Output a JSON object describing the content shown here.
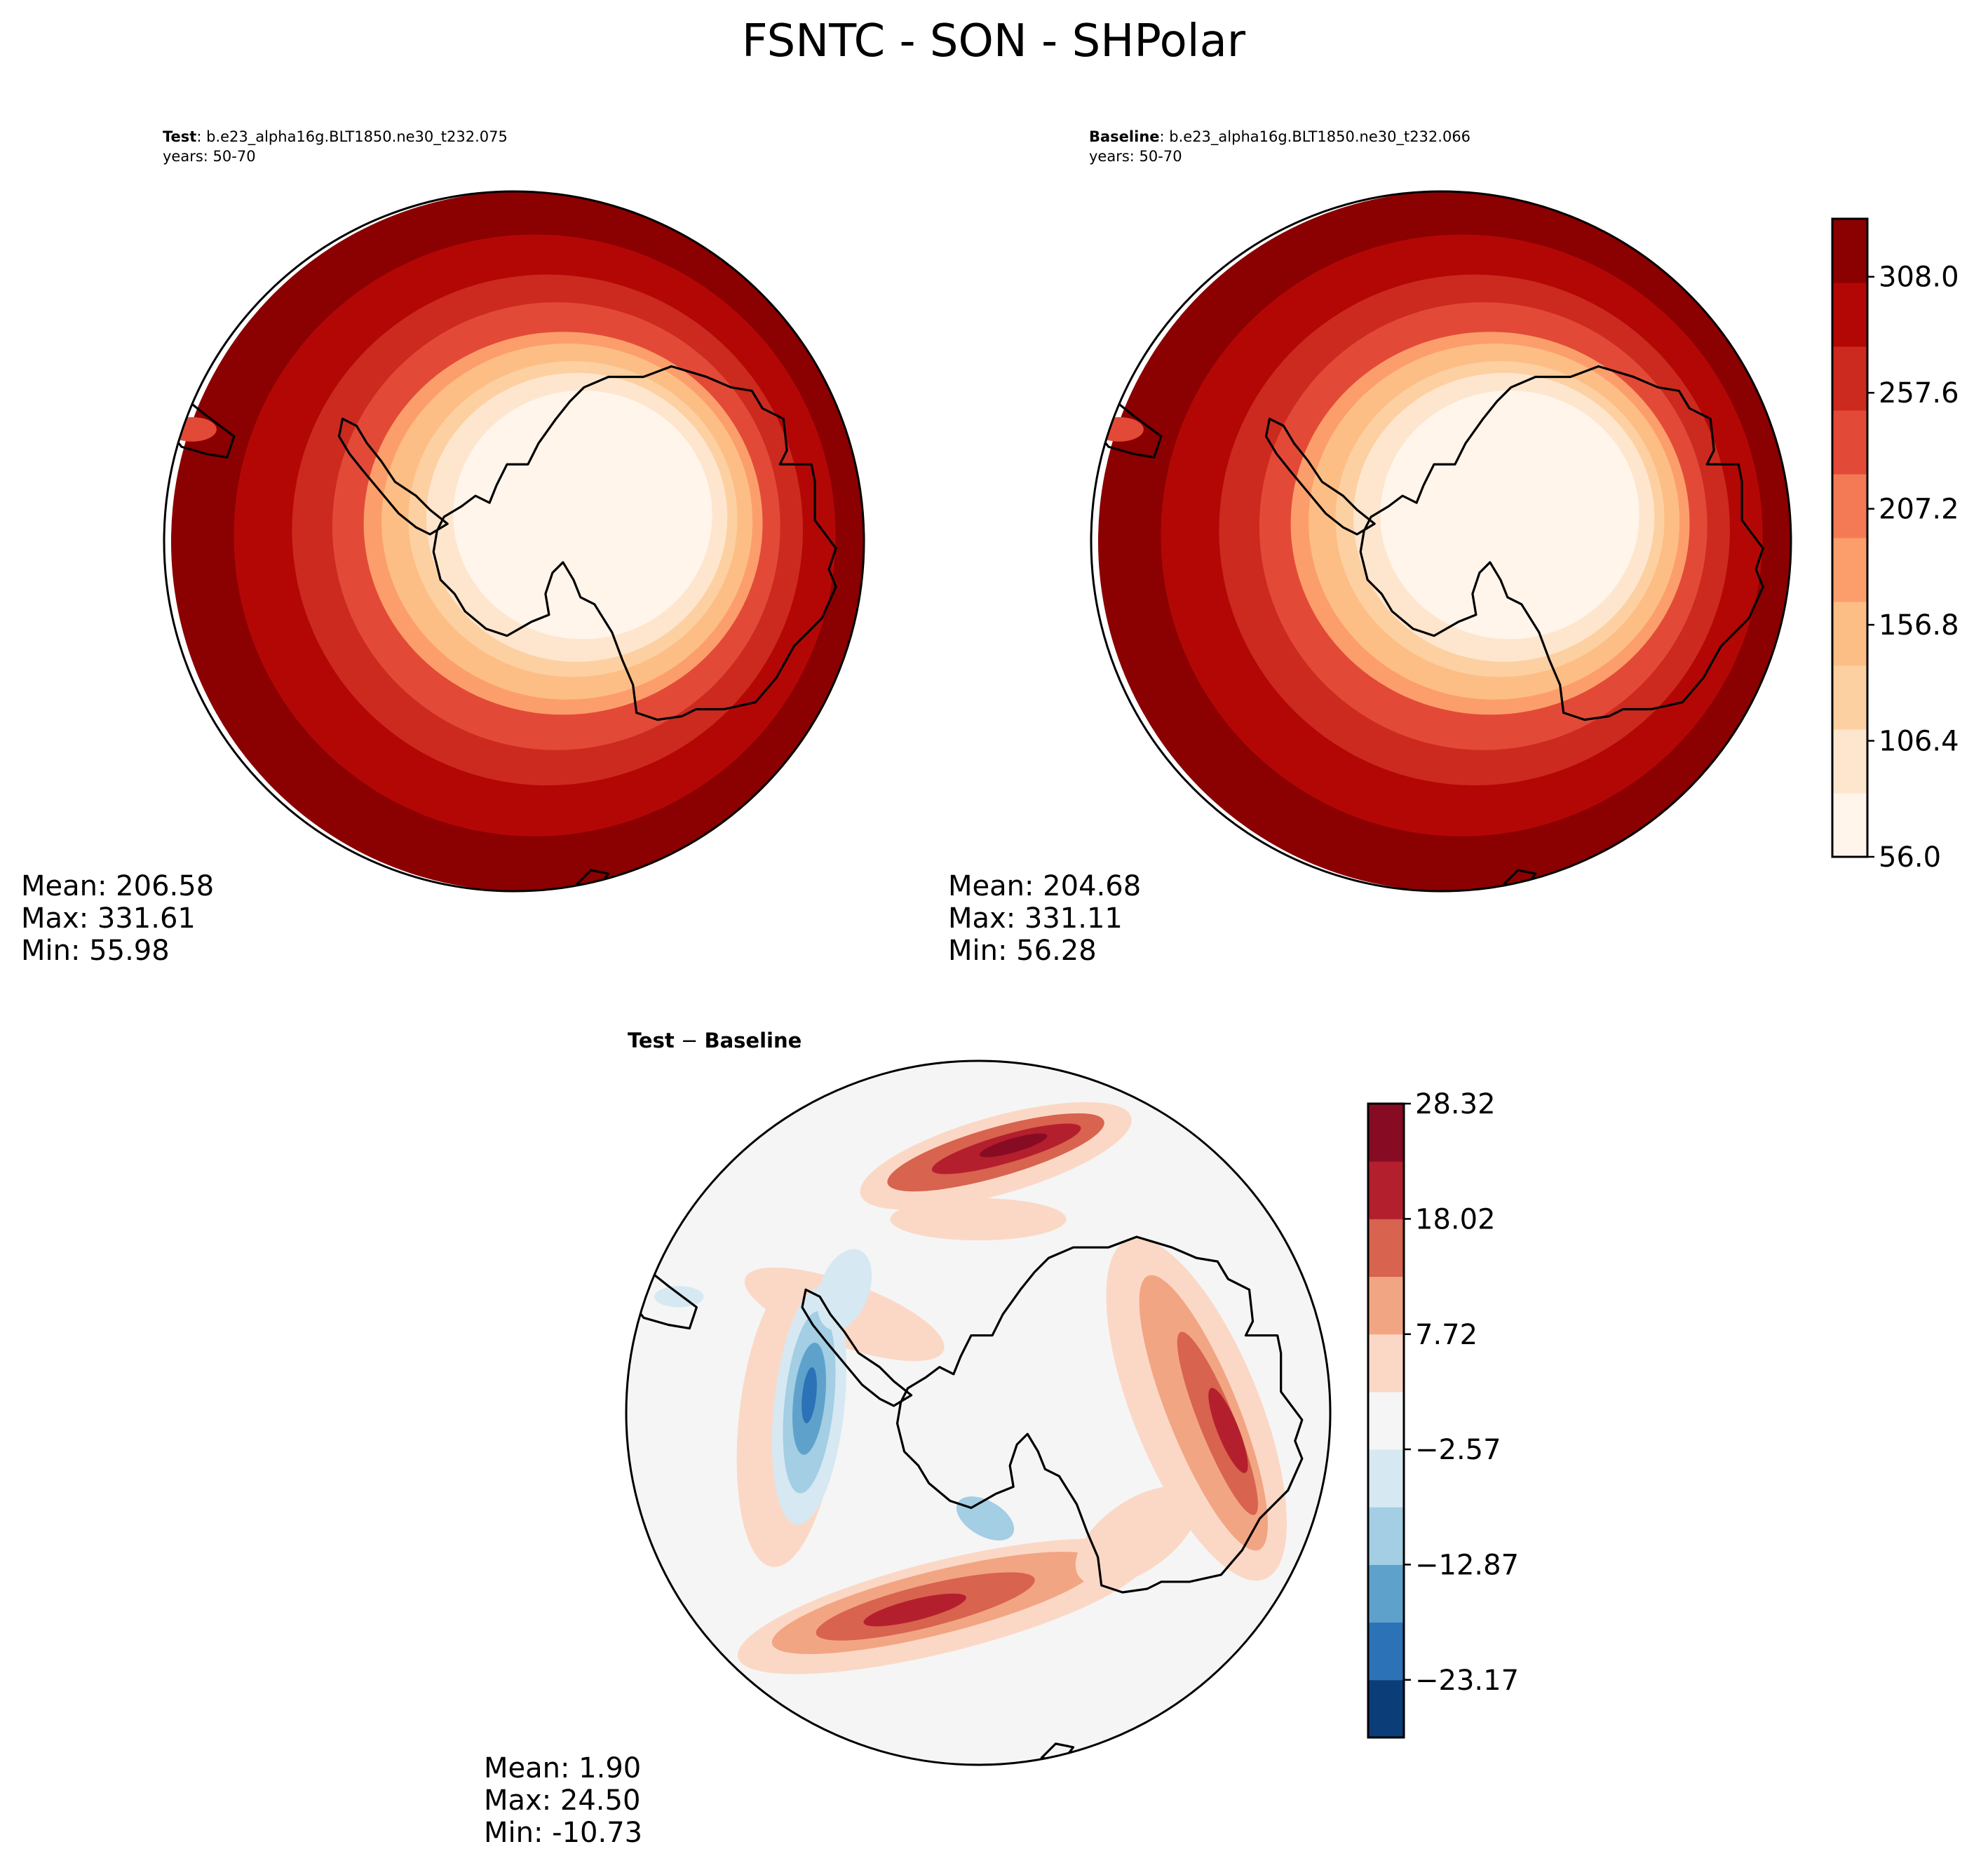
{
  "figure": {
    "title": "FSNTC - SON - SHPolar"
  },
  "panels": [
    {
      "id": "test",
      "label": "Test",
      "label_sep": ": ",
      "case": "b.e23_alpha16g.BLT1850.ne30_t232.075",
      "years": "years: 50-70",
      "stats": {
        "mean": "Mean: 206.58",
        "max": "Max: 331.61",
        "min": "Min: 55.98"
      }
    },
    {
      "id": "baseline",
      "label": "Baseline",
      "label_sep": ": ",
      "case": "b.e23_alpha16g.BLT1850.ne30_t232.066",
      "years": "years: 50-70",
      "stats": {
        "mean": "Mean: 204.68",
        "max": "Max: 331.11",
        "min": "Min: 56.28"
      }
    },
    {
      "id": "difference",
      "title_a": "Test",
      "title_op": " − ",
      "title_b": "Baseline",
      "stats": {
        "mean": "Mean:  1.90",
        "max": "Max: 24.50",
        "min": "Min: -10.73"
      }
    }
  ],
  "colorbars": {
    "main": {
      "ticks": [
        "56.0",
        "106.4",
        "156.8",
        "207.2",
        "257.6",
        "308.0"
      ],
      "tick_values": [
        56.0,
        106.4,
        156.8,
        207.2,
        257.6,
        308.0
      ],
      "range": [
        56.0,
        333.2
      ],
      "bin_colors": [
        "#fff5eb",
        "#fee6ce",
        "#fdd0a2",
        "#fdbe85",
        "#fc9e6b",
        "#f47a56",
        "#e24a37",
        "#cc2a1e",
        "#b30706",
        "#8b0000"
      ]
    },
    "diff": {
      "ticks": [
        "28.32",
        "18.02",
        "7.72",
        "−2.57",
        "−12.87",
        "−23.17"
      ],
      "tick_values": [
        28.32,
        18.02,
        7.72,
        -2.57,
        -12.87,
        -23.17
      ],
      "range": [
        -28.32,
        28.32
      ],
      "bin_colors": [
        "#0b3d78",
        "#2c72b6",
        "#5ea2cc",
        "#a3cee3",
        "#d6e8f2",
        "#f5f5f5",
        "#fbd8c6",
        "#f2a583",
        "#d8634f",
        "#b41f2d",
        "#870c23"
      ]
    }
  },
  "chart_data": {
    "type": "heatmap",
    "title": "FSNTC - SON - SHPolar",
    "variable": "FSNTC",
    "season": "SON",
    "region": "SHPolar",
    "projection": "south polar stereographic",
    "panels": [
      {
        "name": "Test",
        "mean": 206.58,
        "max": 331.61,
        "min": 55.98,
        "ring_bin_index_from_edge": [
          9,
          8,
          7,
          6,
          4,
          3,
          2,
          1,
          0
        ]
      },
      {
        "name": "Baseline",
        "mean": 204.68,
        "max": 331.11,
        "min": 56.28,
        "ring_bin_index_from_edge": [
          9,
          8,
          7,
          6,
          4,
          3,
          2,
          1,
          0
        ]
      },
      {
        "name": "Test - Baseline",
        "mean": 1.9,
        "max": 24.5,
        "min": -10.73
      }
    ],
    "colorbar_main": {
      "min": 56.0,
      "max": 333.2,
      "step": 25.2,
      "ticks": [
        56.0,
        106.4,
        156.8,
        207.2,
        257.6,
        308.0
      ]
    },
    "colorbar_diff": {
      "min": -28.32,
      "max": 28.32,
      "step": 5.15,
      "ticks": [
        -23.17,
        -12.87,
        -2.57,
        7.72,
        18.02,
        28.32
      ]
    }
  }
}
